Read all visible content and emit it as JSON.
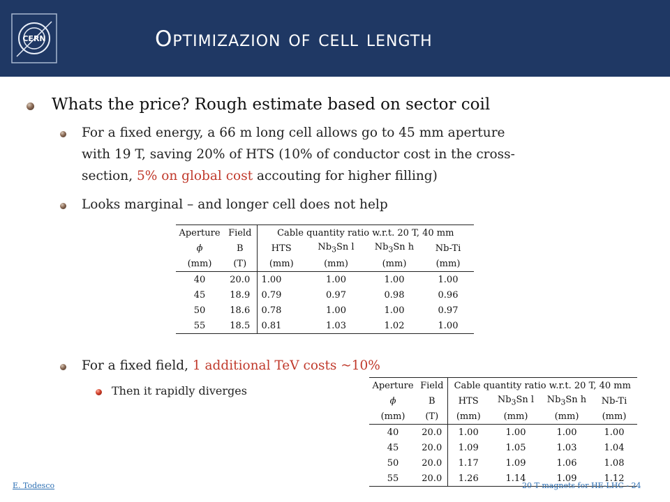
{
  "header": {
    "title": "Optimizazion of cell length",
    "logo_text": "CERN",
    "background": "#1f3864"
  },
  "bullets": {
    "b1": "Whats the price? Rough estimate based on sector coil",
    "b1_1_line1": "For a fixed energy, a 66 m long cell allows go to 45 mm aperture",
    "b1_1_line2": "with 19 T, saving 20% of HTS (10% of conductor cost in the cross-",
    "b1_1_line3_pre": "section, ",
    "b1_1_line3_red": "5% on global cost",
    "b1_1_line3_post": " accouting for higher filling)",
    "b1_2": "Looks marginal – and longer cell does not help",
    "b2_pre": "For a fixed field, ",
    "b2_red": "1 additional TeV costs ~10%",
    "b2_1": "Then it rapidly diverges"
  },
  "table_common": {
    "h_aperture": "Aperture",
    "h_field": "Field",
    "h_span": "Cable quantity ratio w.r.t. 20 T, 40 mm",
    "sym_phi": "ϕ",
    "sym_b": "B",
    "h_hts": "HTS",
    "h_nb3sn_l_pre": "Nb",
    "h_nb3sn_l_sub": "3",
    "h_nb3sn_l_post": "Sn l",
    "h_nb3sn_h_pre": "Nb",
    "h_nb3sn_h_sub": "3",
    "h_nb3sn_h_post": "Sn h",
    "h_nbti": "Nb-Ti",
    "u_mm": "(mm)",
    "u_t": "(T)"
  },
  "table1": {
    "rows": [
      [
        "40",
        "20.0",
        "1.00",
        "1.00",
        "1.00",
        "1.00"
      ],
      [
        "45",
        "18.9",
        "0.79",
        "0.97",
        "0.98",
        "0.96"
      ],
      [
        "50",
        "18.6",
        "0.78",
        "1.00",
        "1.00",
        "0.97"
      ],
      [
        "55",
        "18.5",
        "0.81",
        "1.03",
        "1.02",
        "1.00"
      ]
    ]
  },
  "table2": {
    "rows": [
      [
        "40",
        "20.0",
        "1.00",
        "1.00",
        "1.00",
        "1.00"
      ],
      [
        "45",
        "20.0",
        "1.09",
        "1.05",
        "1.03",
        "1.04"
      ],
      [
        "50",
        "20.0",
        "1.17",
        "1.09",
        "1.06",
        "1.08"
      ],
      [
        "55",
        "20.0",
        "1.26",
        "1.14",
        "1.09",
        "1.12"
      ]
    ]
  },
  "footer": {
    "author": "E. Todesco",
    "slide_info": "20 T magnets for HE-LHC - 24"
  }
}
